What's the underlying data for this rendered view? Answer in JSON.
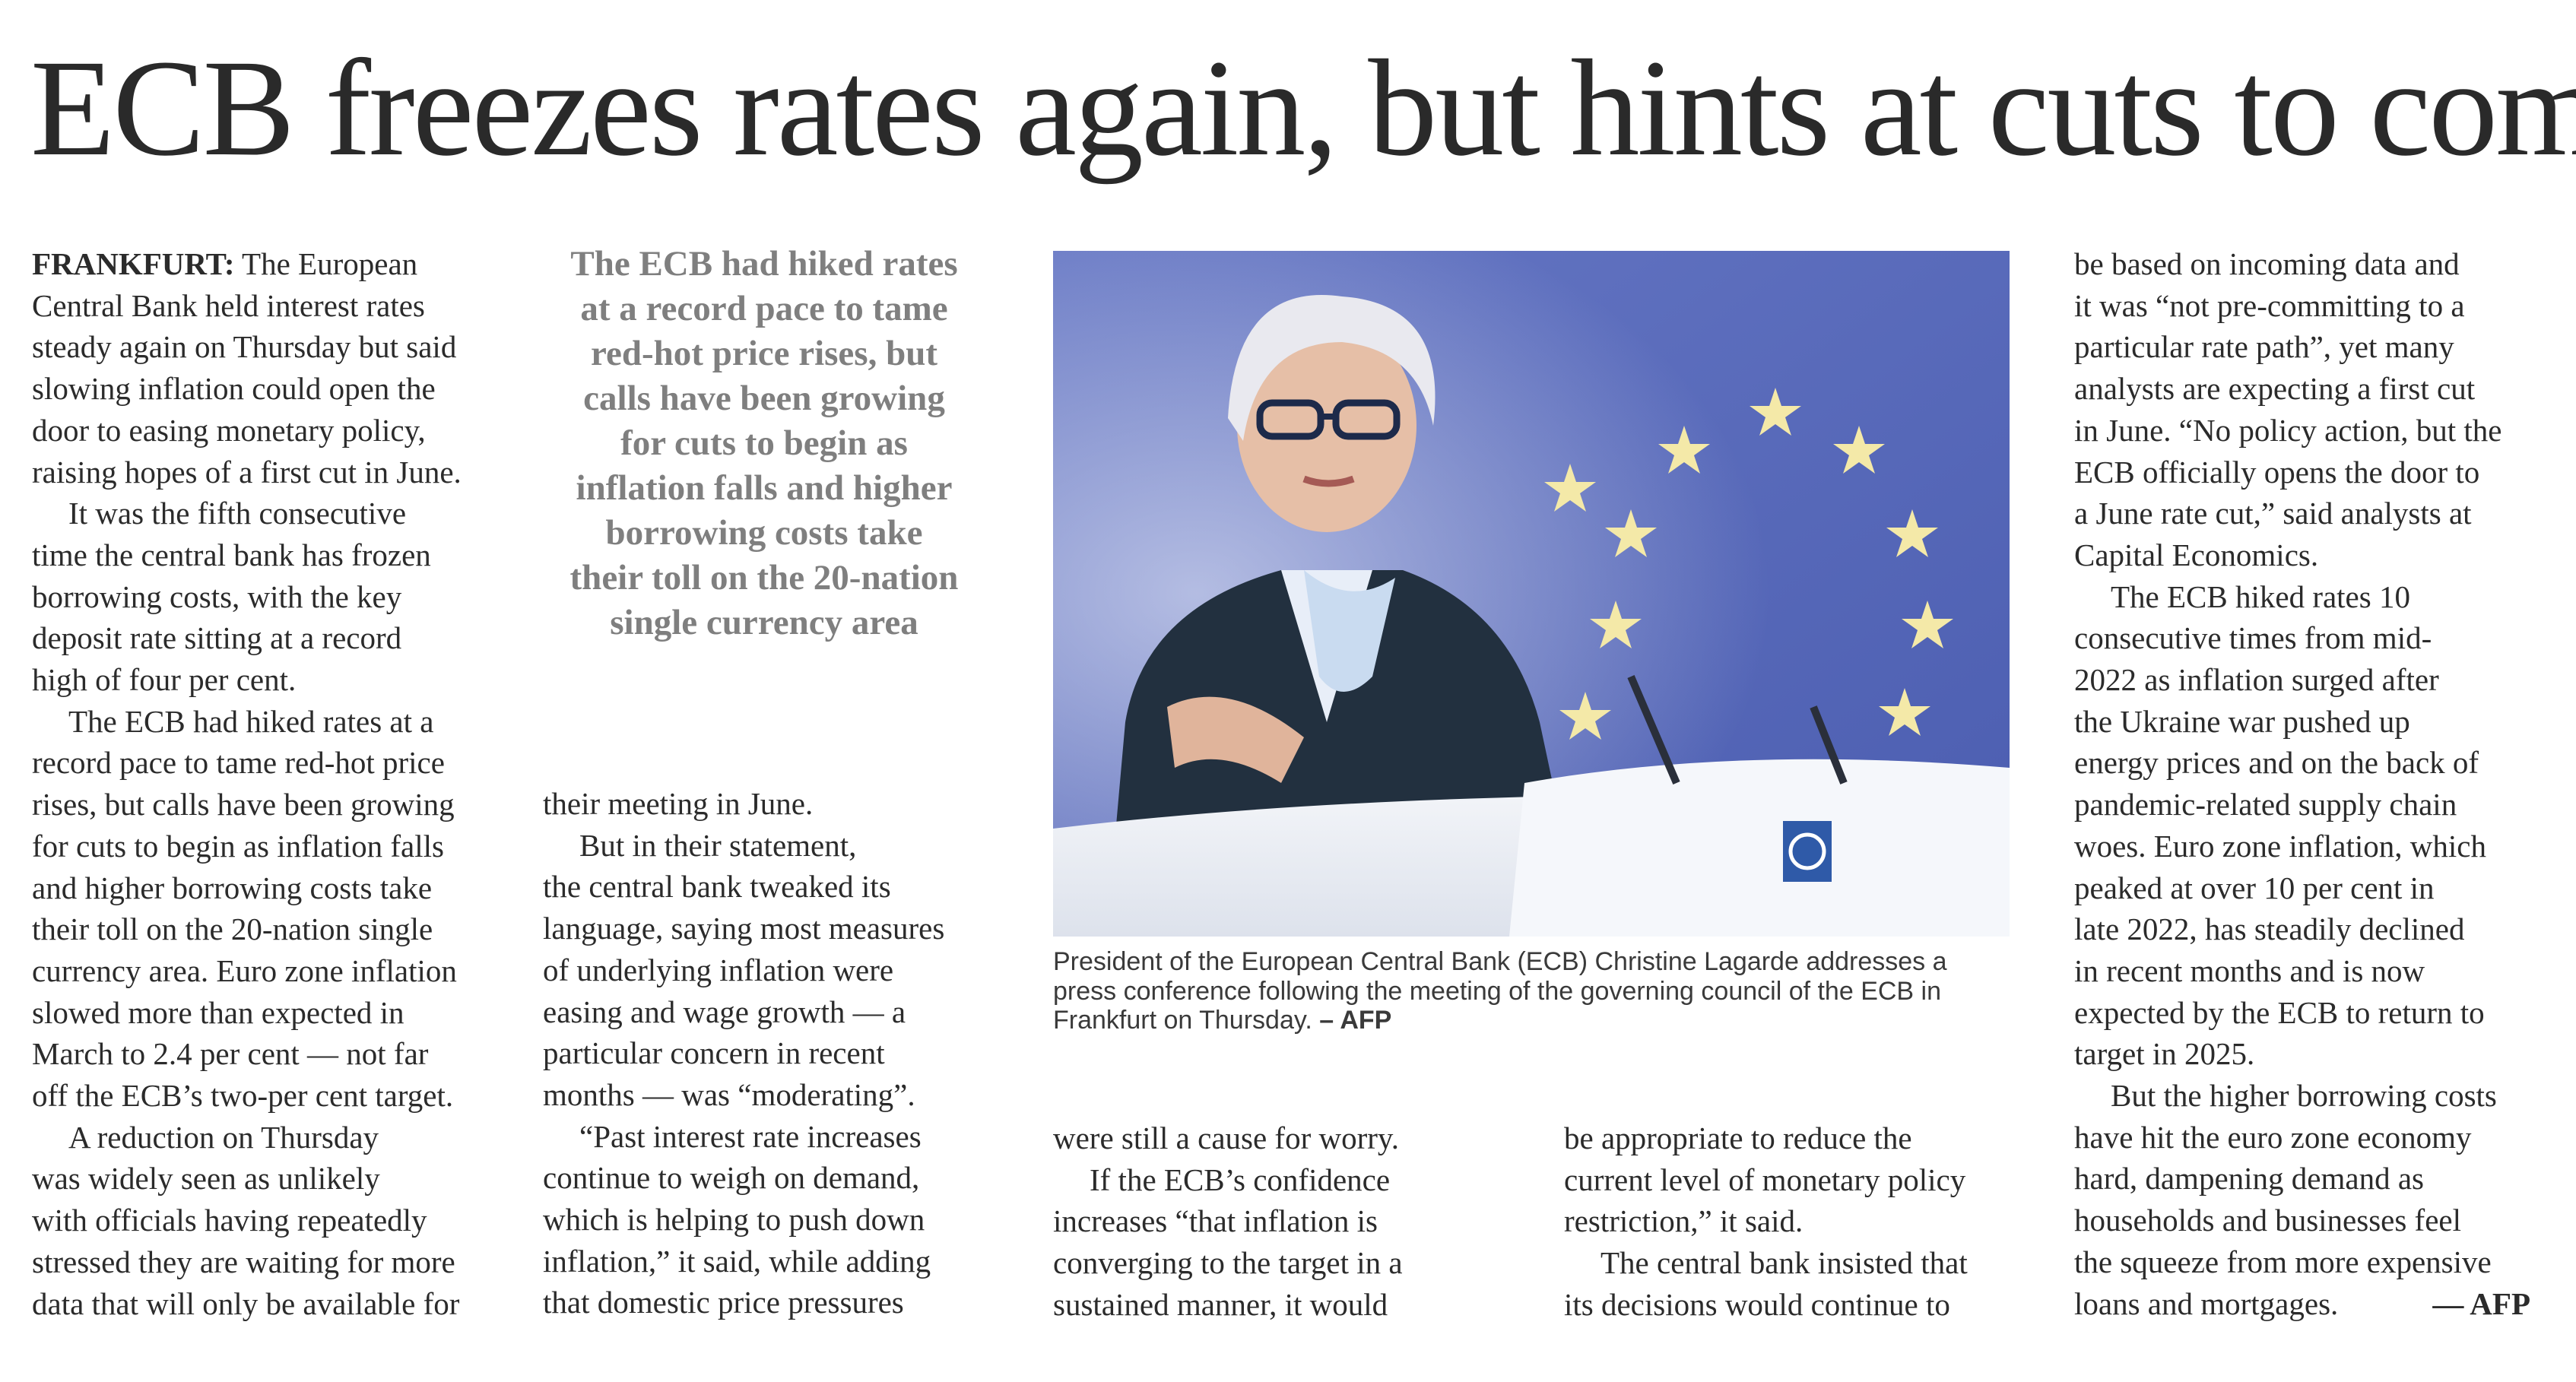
{
  "headline": "ECB freezes rates again, but hints at cuts to come",
  "col1": {
    "dateline": "FRANKFURT:",
    "p1": [
      " The European",
      "Central Bank held interest rates",
      "steady again on Thursday but said",
      "slowing inflation could open the",
      "door to easing monetary policy,",
      "raising hopes of a first cut in June."
    ],
    "p2": [
      "It was the fifth consecutive",
      "time the central bank has frozen",
      "borrowing costs, with the key",
      "deposit rate sitting at a record",
      "high of four per cent."
    ],
    "p3": [
      "The ECB had hiked rates at a",
      "record pace to tame red-hot price",
      "rises, but calls have been growing",
      "for cuts to begin as inflation falls",
      "and higher borrowing costs take",
      "their toll on the 20-nation single",
      "currency area. Euro zone inflation",
      "slowed more than expected in",
      "March to 2.4 per cent — not far",
      "off the ECB’s two-per cent target."
    ],
    "p4": [
      "A reduction on Thursday",
      "was widely seen as unlikely",
      "with officials having repeatedly",
      "stressed they are waiting for more",
      "data that will only be available for"
    ]
  },
  "pullquote": [
    "The ECB had hiked rates",
    "at a record pace to tame",
    "red-hot price rises, but",
    "calls have been growing",
    "for cuts to begin as",
    "inflation falls and higher",
    "borrowing costs take",
    "their toll on the 20-nation",
    "single currency area"
  ],
  "col2": {
    "p1": [
      "their meeting in June."
    ],
    "p2": [
      "But in their statement,",
      "the central bank tweaked its",
      "language, saying most measures",
      "of underlying inflation were",
      "easing and wage growth — a",
      "particular concern in recent",
      "months — was “moderating”."
    ],
    "p3": [
      "“Past interest rate increases",
      "continue to weigh on demand,",
      "which is helping to push down",
      "inflation,” it said, while adding",
      "that domestic price pressures"
    ]
  },
  "col3": {
    "p1": [
      "were still a cause for worry."
    ],
    "p2": [
      "If the ECB’s confidence",
      "increases “that inflation is",
      "converging to the target in a",
      "sustained manner, it would"
    ]
  },
  "col4": {
    "p1": [
      "be appropriate to reduce the",
      "current level of monetary policy",
      "restriction,” it said."
    ],
    "p2": [
      "The central bank insisted that",
      "its decisions would continue to"
    ]
  },
  "col5": {
    "p1": [
      "be based on incoming data and",
      "it was “not pre-committing to a",
      "particular rate path”, yet many",
      "analysts are expecting a first cut",
      "in June. “No policy action, but the",
      "ECB officially opens the door to",
      "a June rate cut,” said analysts at",
      "Capital Economics."
    ],
    "p2": [
      "The ECB hiked rates 10",
      "consecutive times from mid-",
      "2022 as inflation surged after",
      "the Ukraine war pushed up",
      "energy prices and on the back of",
      "pandemic-related supply chain",
      "woes. Euro zone inflation, which",
      "peaked at over 10 per cent in",
      "late 2022, has steadily declined",
      "in recent months and is now",
      "expected by the ECB to return to",
      "target in 2025."
    ],
    "p3": [
      "But the higher borrowing costs",
      "have hit the euro zone economy",
      "hard, dampening demand as",
      "households and businesses feel",
      "the squeeze from more expensive"
    ],
    "last_line": "loans and mortgages.",
    "byline": "— AFP"
  },
  "caption": {
    "lines": [
      "President of the European Central Bank (ECB) Christine Lagarde addresses a",
      "press conference following the meeting of the governing council of the ECB in"
    ],
    "last_line": "Frankfurt on Thursday.",
    "credit": "– AFP"
  },
  "colors": {
    "flag_blue": "#5c6fbe",
    "star_yellow": "#f4e9a8",
    "pullquote_gray": "#7f7f7f"
  }
}
